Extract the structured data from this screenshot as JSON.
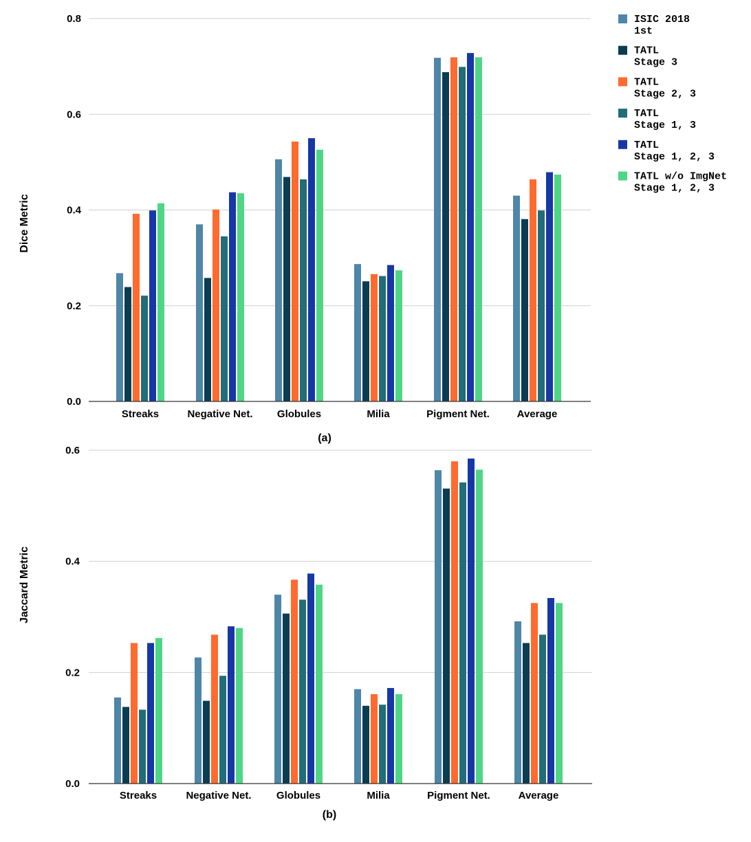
{
  "legend": [
    {
      "line1": "ISIC 2018",
      "line2": "1st",
      "color": "#4e86a8"
    },
    {
      "line1": "TATL",
      "line2": "Stage 3",
      "color": "#0b3d52"
    },
    {
      "line1": "TATL",
      "line2": "Stage 2, 3",
      "color": "#ff6a2e"
    },
    {
      "line1": "TATL",
      "line2": "Stage 1, 3",
      "color": "#216d78"
    },
    {
      "line1": "TATL",
      "line2": "Stage 1, 2, 3",
      "color": "#1737a6"
    },
    {
      "line1": "TATL w/o ImgNet",
      "line2": "Stage 1, 2, 3",
      "color": "#4ed686"
    }
  ],
  "chart_data": [
    {
      "type": "bar",
      "caption": "(a)",
      "ylabel": "Dice Metric",
      "xlabel": "",
      "ylim": [
        0,
        0.8
      ],
      "yticks": [
        "0.0",
        "0.2",
        "0.4",
        "0.6",
        "0.8"
      ],
      "grid": true,
      "categories": [
        "Streaks",
        "Negative Net.",
        "Globules",
        "Milia",
        "Pigment Net.",
        "Average"
      ],
      "series": [
        {
          "name": "ISIC 2018 1st",
          "values": [
            0.268,
            0.37,
            0.506,
            0.287,
            0.718,
            0.43
          ]
        },
        {
          "name": "TATL Stage 3",
          "values": [
            0.239,
            0.258,
            0.469,
            0.251,
            0.688,
            0.381
          ]
        },
        {
          "name": "TATL Stage 2, 3",
          "values": [
            0.392,
            0.401,
            0.543,
            0.266,
            0.719,
            0.464
          ]
        },
        {
          "name": "TATL Stage 1, 3",
          "values": [
            0.221,
            0.345,
            0.464,
            0.262,
            0.699,
            0.399
          ]
        },
        {
          "name": "TATL Stage 1, 2, 3",
          "values": [
            0.399,
            0.437,
            0.55,
            0.285,
            0.728,
            0.479
          ]
        },
        {
          "name": "TATL w/o ImgNet Stage 1, 2, 3",
          "values": [
            0.414,
            0.435,
            0.526,
            0.274,
            0.719,
            0.474
          ]
        }
      ]
    },
    {
      "type": "bar",
      "caption": "(b)",
      "ylabel": "Jaccard Metric",
      "xlabel": "",
      "ylim": [
        0,
        0.6
      ],
      "yticks": [
        "0.0",
        "0.2",
        "0.4",
        "0.6"
      ],
      "grid": true,
      "categories": [
        "Streaks",
        "Negative Net.",
        "Globules",
        "Milia",
        "Pigment Net.",
        "Average"
      ],
      "series": [
        {
          "name": "ISIC 2018 1st",
          "values": [
            0.155,
            0.227,
            0.34,
            0.17,
            0.564,
            0.292
          ]
        },
        {
          "name": "TATL Stage 3",
          "values": [
            0.138,
            0.149,
            0.306,
            0.14,
            0.531,
            0.253
          ]
        },
        {
          "name": "TATL Stage 2, 3",
          "values": [
            0.253,
            0.268,
            0.367,
            0.161,
            0.58,
            0.325
          ]
        },
        {
          "name": "TATL Stage 1, 3",
          "values": [
            0.133,
            0.194,
            0.331,
            0.142,
            0.542,
            0.268
          ]
        },
        {
          "name": "TATL Stage 1, 2, 3",
          "values": [
            0.253,
            0.283,
            0.378,
            0.172,
            0.585,
            0.334
          ]
        },
        {
          "name": "TATL w/o ImgNet Stage 1, 2, 3",
          "values": [
            0.262,
            0.28,
            0.358,
            0.161,
            0.565,
            0.325
          ]
        }
      ]
    }
  ]
}
